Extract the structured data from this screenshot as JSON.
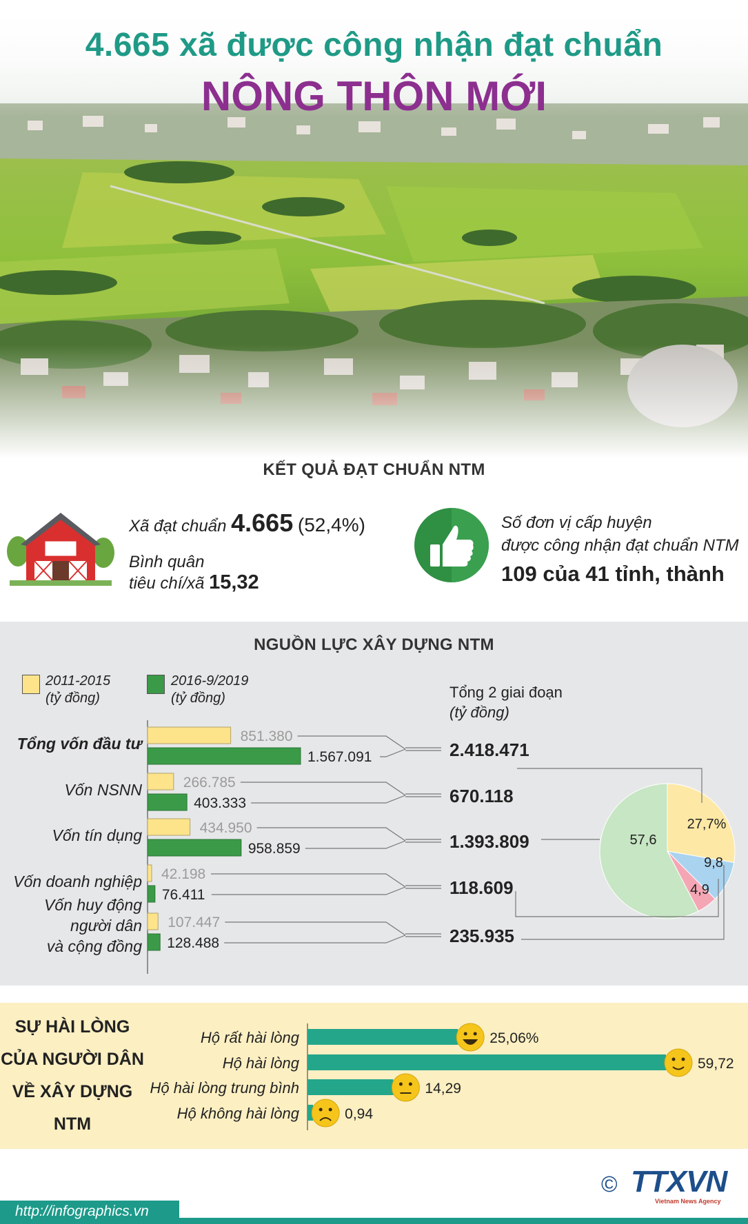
{
  "header": {
    "title_line1": "4.665 xã được công nhận đạt chuẩn",
    "title_line2": "NÔNG THÔN MỚI"
  },
  "results": {
    "heading": "KẾT QUẢ ĐẠT CHUẨN NTM",
    "communes_label": "Xã đạt chuẩn",
    "communes_value": "4.665",
    "communes_pct": "(52,4%)",
    "avg_label_line1": "Bình quân",
    "avg_label_line2": "tiêu chí/xã",
    "avg_value": "15,32",
    "district_label_line1": "Số đơn vị cấp huyện",
    "district_label_line2": "được công nhận đạt chuẩn NTM",
    "district_value": "109 của 41 tỉnh, thành",
    "icon_house": "barn-house-icon",
    "icon_thumb": "thumbs-up-icon"
  },
  "resources": {
    "heading": "NGUỒN LỰC XÂY DỰNG NTM",
    "legend": [
      {
        "line1": "2011-2015",
        "line2": "(tỷ đồng)",
        "color": "#fde38a"
      },
      {
        "line1": "2016-9/2019",
        "line2": "(tỷ đồng)",
        "color": "#3a9a48"
      }
    ],
    "totals_label_line1": "Tổng 2 giai đoạn",
    "totals_label_line2": "(tỷ đồng)"
  },
  "chart_data": [
    {
      "type": "bar",
      "orientation": "horizontal",
      "categories": [
        "Tổng vốn đầu tư",
        "Vốn NSNN",
        "Vốn tín dụng",
        "Vốn doanh nghiệp",
        "Vốn huy động người dân và cộng đồng"
      ],
      "category_lines": [
        [
          "Tổng vốn đầu tư"
        ],
        [
          "Vốn NSNN"
        ],
        [
          "Vốn tín dụng"
        ],
        [
          "Vốn doanh nghiệp"
        ],
        [
          "Vốn huy động",
          "người dân",
          "và cộng đồng"
        ]
      ],
      "series": [
        {
          "name": "2011-2015 (tỷ đồng)",
          "values": [
            851380,
            266785,
            434950,
            42198,
            107447
          ],
          "labels": [
            "851.380",
            "266.785",
            "434.950",
            "42.198",
            "107.447"
          ],
          "color": "#fde38a"
        },
        {
          "name": "2016-9/2019 (tỷ đồng)",
          "values": [
            1567091,
            403333,
            958859,
            76411,
            128488
          ],
          "labels": [
            "1.567.091",
            "403.333",
            "958.859",
            "76.411",
            "128.488"
          ],
          "color": "#3a9a48"
        }
      ],
      "totals": {
        "name": "Tổng 2 giai đoạn (tỷ đồng)",
        "values": [
          2418471,
          670118,
          1393809,
          118609,
          235935
        ],
        "labels": [
          "2.418.471",
          "670.118",
          "1.393.809",
          "118.609",
          "235.935"
        ]
      }
    },
    {
      "type": "pie",
      "slices": [
        {
          "value": 27.7,
          "label": "27,7%",
          "color": "#fde8a6"
        },
        {
          "value": 9.8,
          "label": "9,8",
          "color": "#a9d3ef"
        },
        {
          "value": 4.9,
          "label": "4,9",
          "color": "#f4a6b4"
        },
        {
          "value": 57.6,
          "label": "57,6",
          "color": "#c7e6c4"
        }
      ]
    },
    {
      "type": "bar",
      "orientation": "horizontal",
      "title_lines": [
        "SỰ HÀI LÒNG",
        "CỦA NGƯỜI DÂN",
        "VỀ XÂY DỰNG",
        "NTM"
      ],
      "categories": [
        "Hộ rất hài lòng",
        "Hộ hài lòng",
        "Hộ hài lòng trung bình",
        "Hộ không hài lòng"
      ],
      "values": [
        25.06,
        59.72,
        14.29,
        0.94
      ],
      "labels": [
        "25,06%",
        "59,72",
        "14,29",
        "0,94"
      ],
      "faces": [
        "very-happy-face-icon",
        "happy-face-icon",
        "neutral-face-icon",
        "sad-face-icon"
      ],
      "color": "#24a68b"
    }
  ],
  "footer": {
    "url": "http://infographics.vn",
    "copyright": "©",
    "logo": "TTXVN",
    "logo_sub": "Vietnam News Agency"
  }
}
